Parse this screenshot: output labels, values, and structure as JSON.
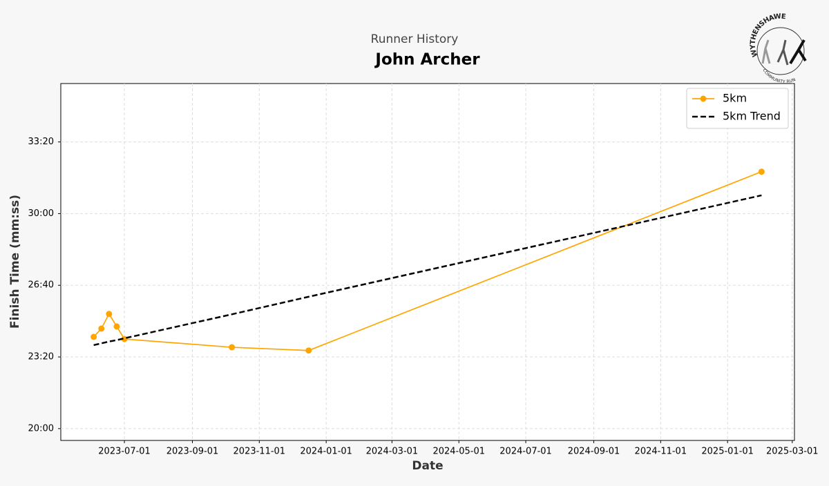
{
  "chart_data": {
    "type": "line",
    "title": "Runner History",
    "subtitle": "John Archer",
    "x_label": "Date",
    "y_label": "Finish Time (mm:ss)",
    "x": [
      "2023-06-03",
      "2023-06-10",
      "2023-06-17",
      "2023-06-24",
      "2023-07-01",
      "2023-10-07",
      "2023-12-16",
      "2025-02-01"
    ],
    "series": [
      {
        "name": "5km",
        "color": "#ffa500",
        "marker": true,
        "linestyle": "solid",
        "values": [
          1456,
          1479,
          1520,
          1485,
          1450,
          1427,
          1418,
          1917
        ]
      },
      {
        "name": "5km Trend",
        "color": "#000000",
        "marker": false,
        "linestyle": "dashed",
        "values": [
          1433,
          1438,
          1443,
          1447,
          1452,
          1519,
          1568,
          1851
        ]
      }
    ],
    "xlim": [
      "2023-05-04",
      "2025-03-03"
    ],
    "xticks": [
      "2023-07-01",
      "2023-09-01",
      "2023-11-01",
      "2024-01-01",
      "2024-03-01",
      "2024-05-01",
      "2024-07-01",
      "2024-09-01",
      "2024-11-01",
      "2025-01-01",
      "2025-03-01"
    ],
    "ylim": [
      1167,
      2163
    ],
    "yticks": [
      {
        "value": 1200,
        "label": "20:00"
      },
      {
        "value": 1400,
        "label": "23:20"
      },
      {
        "value": 1600,
        "label": "26:40"
      },
      {
        "value": 1800,
        "label": "30:00"
      },
      {
        "value": 2000,
        "label": "33:20"
      }
    ],
    "grid": true,
    "legend": "upper right"
  },
  "logo": {
    "text": "WYTHENSHAWE",
    "subtext": "COMMUNITY RUN"
  }
}
